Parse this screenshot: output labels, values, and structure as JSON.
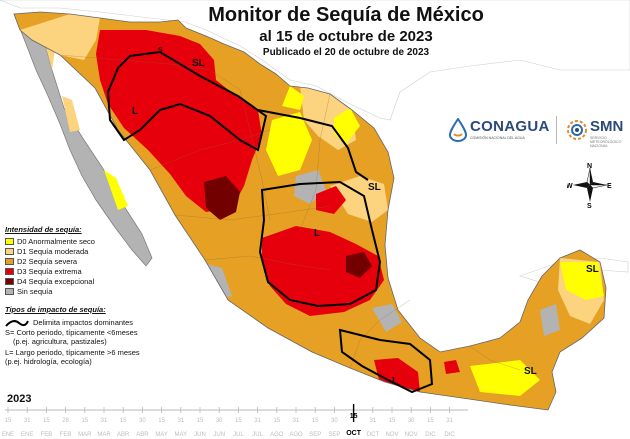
{
  "header": {
    "title": "Monitor de Sequía de México",
    "date_line": "al 15 de octubre de 2023",
    "published_line": "Publicado el 20 de octubre de 2023"
  },
  "logos": {
    "conagua": "CONAGUA",
    "conagua_sub": "COMISIÓN NACIONAL DEL AGUA",
    "smn": "SMN",
    "smn_sub": "SERVICIO METEOROLÓGICO NACIONAL"
  },
  "compass": {
    "n": "N",
    "s": "S",
    "e": "E",
    "w": "W"
  },
  "legend": {
    "title": "Intensidad de sequía:",
    "items": [
      {
        "label": "D0 Anormalmente seco",
        "color": "#ffff00"
      },
      {
        "label": "D1 Sequía moderada",
        "color": "#fcd37f"
      },
      {
        "label": "D2 Sequía severa",
        "color": "#e6a023"
      },
      {
        "label": "D3 Sequía extrema",
        "color": "#e6000b"
      },
      {
        "label": "D4 Sequía excepcional",
        "color": "#730000"
      },
      {
        "label": "Sin sequía",
        "color": "#b3b3b3"
      }
    ]
  },
  "impacts": {
    "title": "Tipos de impacto de sequía:",
    "delimit": "Delimita impactos dominantes",
    "short_line1": "S= Corto periodo, típicamente <6meses",
    "short_line2": "(p.ej. agricultura, pastizales)",
    "long_line1": "L= Largo periodo, típicamente >6 meses",
    "long_line2": "(p.ej. hidrología, ecología)"
  },
  "map_labels": {
    "sl_nw": "SL",
    "s_border": "S",
    "l_nw": "L",
    "sl_ne": "SL",
    "l_center": "L",
    "l_south": "L",
    "sl_yucatan": "SL",
    "sl_se": "SL"
  },
  "timeline": {
    "year": "2023",
    "highlight_day": "15",
    "highlight_month": "OCT",
    "days": [
      "15",
      "31",
      "15",
      "28",
      "15",
      "31",
      "15",
      "30",
      "15",
      "31",
      "15",
      "30",
      "15",
      "31",
      "15",
      "31",
      "15",
      "30",
      "15",
      "31",
      "15",
      "30",
      "15",
      "31"
    ],
    "months": [
      "ENE",
      "ENE",
      "FEB",
      "FEB",
      "MAR",
      "MAR",
      "ABR",
      "ABR",
      "MAY",
      "MAY",
      "JUN",
      "JUN",
      "JUL",
      "JUL",
      "AGO",
      "AGO",
      "SEP",
      "SEP",
      "OCT",
      "OCT",
      "NOV",
      "NOV",
      "DIC",
      "DIC"
    ]
  }
}
